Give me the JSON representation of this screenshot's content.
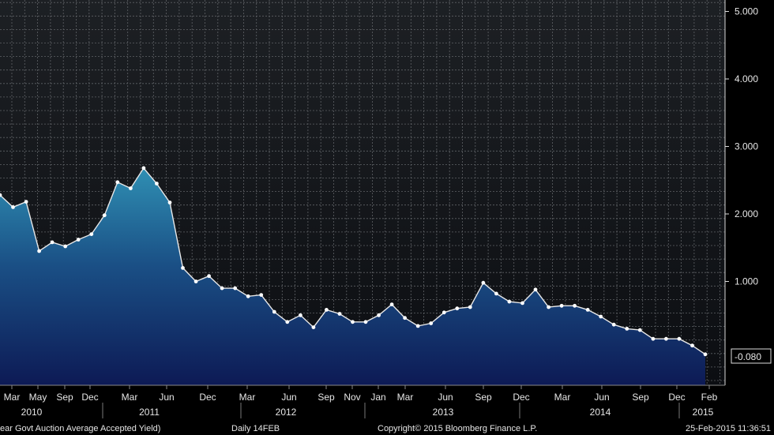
{
  "chart_data": {
    "type": "area",
    "ylim": [
      -0.5,
      5.2
    ],
    "yticks": [
      "5.000",
      "4.000",
      "3.000",
      "2.000",
      "1.000"
    ],
    "grid": true,
    "last_value_label": "-0.080",
    "month_labels": [
      "Mar",
      "May",
      "Sep",
      "Dec",
      "Mar",
      "Jun",
      "Dec",
      "Mar",
      "Jun",
      "Sep",
      "Nov",
      "Jan",
      "Mar",
      "Jun",
      "Sep",
      "Dec",
      "Mar",
      "Jun",
      "Sep",
      "Dec",
      "Feb"
    ],
    "year_labels": [
      "2010",
      "2011",
      "2012",
      "2013",
      "2014",
      "2015"
    ],
    "series": [
      {
        "values": [
          2.28,
          2.1,
          2.18,
          1.45,
          1.58,
          1.52,
          1.62,
          1.7,
          1.98,
          2.47,
          2.38,
          2.68,
          2.45,
          2.17,
          1.2,
          1.0,
          1.08,
          0.9,
          0.9,
          0.78,
          0.8,
          0.55,
          0.4,
          0.5,
          0.32,
          0.58,
          0.52,
          0.4,
          0.4,
          0.5,
          0.66,
          0.46,
          0.34,
          0.38,
          0.54,
          0.6,
          0.62,
          0.98,
          0.82,
          0.7,
          0.68,
          0.88,
          0.62,
          0.64,
          0.64,
          0.58,
          0.48,
          0.36,
          0.3,
          0.28,
          0.15,
          0.15,
          0.15,
          0.05,
          -0.08
        ]
      }
    ],
    "footer": {
      "left": "ear Govt Auction Average Accepted Yield)",
      "mid": "Daily 14FEB",
      "copyright": "Copyright© 2015 Bloomberg Finance L.P.",
      "timestamp": "25-Feb-2015 11:36:51"
    }
  }
}
